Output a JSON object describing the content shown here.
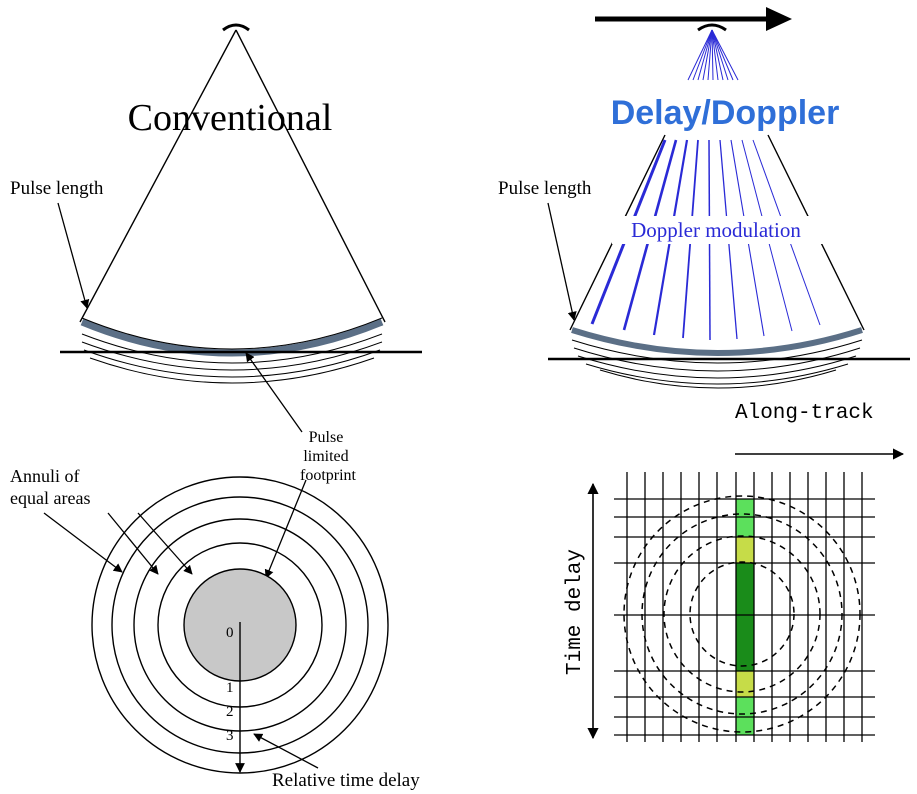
{
  "conventional": {
    "title": "Conventional",
    "pulse_length_label": "Pulse length",
    "footprint_label_line1": "Pulse",
    "footprint_label_line2": "limited",
    "footprint_label_line3": "footprint",
    "annuli_label_line1": "Annuli of",
    "annuli_label_line2": "equal areas",
    "ring_numbers": [
      "0",
      "1",
      "2",
      "3"
    ],
    "time_delay_label": "Relative time delay"
  },
  "delay_doppler": {
    "title": "Delay/Doppler",
    "pulse_length_label": "Pulse length",
    "modulation_label": "Doppler modulation",
    "along_track_label": "Along-track",
    "time_delay_label": "Time delay"
  },
  "colors": {
    "line": "#000000",
    "pulse_band": "#5b6f86",
    "footprint_fill": "#c8c8c8",
    "doppler_blue": "#2a2ad6",
    "title_blue": "#2f6fd8",
    "light_green": "#5ce05c",
    "yellow_green": "#c6dc48",
    "dark_green": "#1a8c1a"
  }
}
